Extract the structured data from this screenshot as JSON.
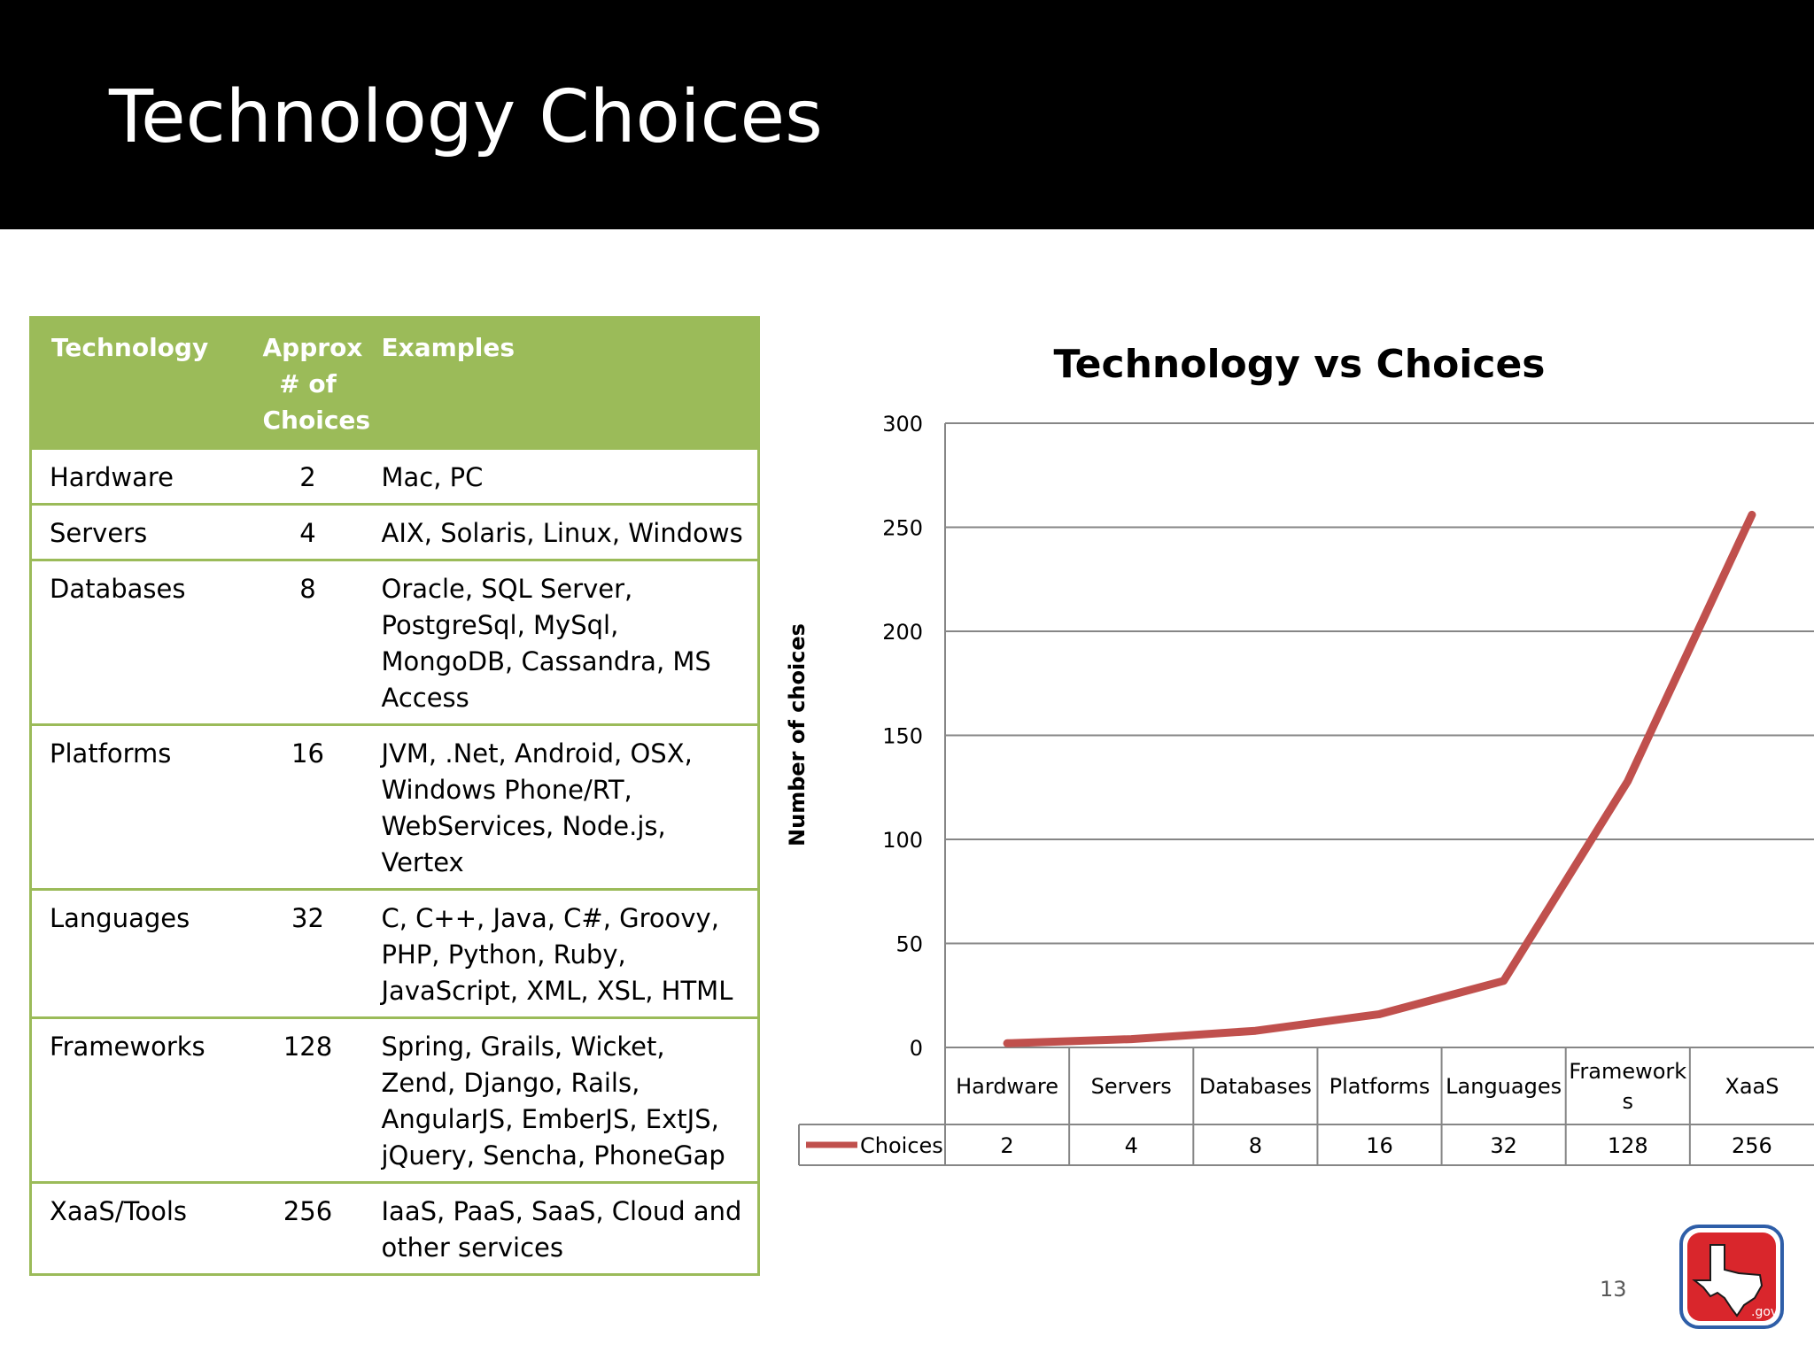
{
  "slide": {
    "title": "Technology Choices",
    "page_number": "13",
    "logo_text": ".gov"
  },
  "table": {
    "headers": [
      "Technology",
      "Approx # of Choices",
      "Examples"
    ],
    "rows": [
      {
        "technology": "Hardware",
        "count": "2",
        "examples": "Mac, PC"
      },
      {
        "technology": "Servers",
        "count": "4",
        "examples": "AIX, Solaris, Linux, Windows"
      },
      {
        "technology": "Databases",
        "count": "8",
        "examples": "Oracle, SQL Server, PostgreSql, MySql, MongoDB, Cassandra, MS Access"
      },
      {
        "technology": "Platforms",
        "count": "16",
        "examples": "JVM, .Net, Android, OSX, Windows Phone/RT, WebServices, Node.js, Vertex"
      },
      {
        "technology": "Languages",
        "count": "32",
        "examples": "C, C++, Java, C#, Groovy, PHP, Python, Ruby, JavaScript, XML, XSL, HTML"
      },
      {
        "technology": "Frameworks",
        "count": "128",
        "examples": "Spring, Grails, Wicket, Zend, Django, Rails, AngularJS, EmberJS, ExtJS, jQuery, Sencha, PhoneGap"
      },
      {
        "technology": "XaaS/Tools",
        "count": "256",
        "examples": "IaaS, PaaS, SaaS, Cloud and other services"
      }
    ]
  },
  "chart_data": {
    "type": "line",
    "title": "Technology vs Choices",
    "ylabel": "Number of choices",
    "xlabel": "",
    "categories": [
      "Hardware",
      "Servers",
      "Databases",
      "Platforms",
      "Languages",
      "Frameworks",
      "XaaS"
    ],
    "series": [
      {
        "name": "Choices",
        "values": [
          2,
          4,
          8,
          16,
          32,
          128,
          256
        ],
        "color": "#c0504d"
      }
    ],
    "ylim": [
      0,
      300
    ],
    "yticks": [
      0,
      50,
      100,
      150,
      200,
      250,
      300
    ],
    "grid": true,
    "data_table": true
  }
}
